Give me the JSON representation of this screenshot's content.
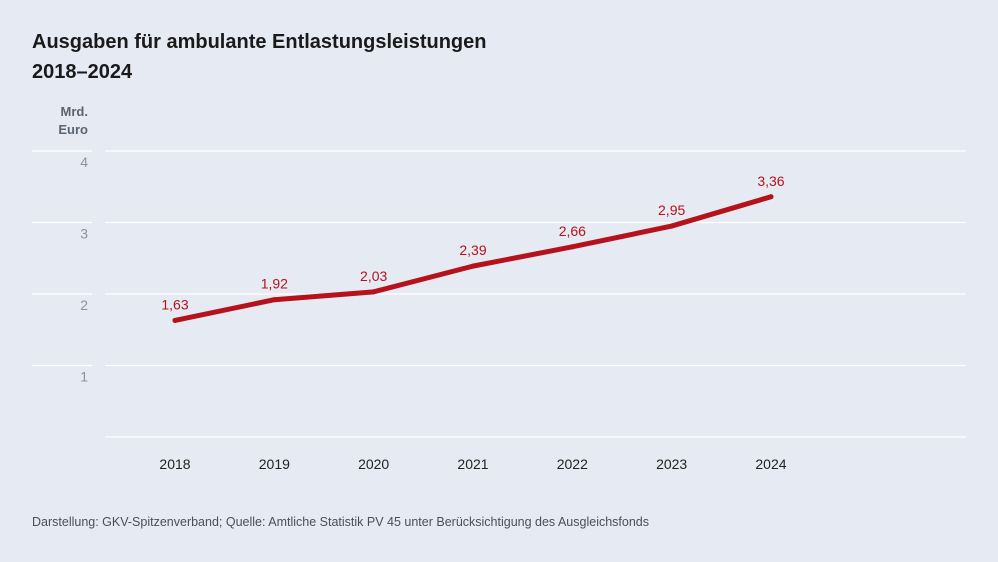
{
  "header": {
    "title_line1": "Ausgaben für ambulante Entlastungsleistungen",
    "title_line2": "2018–2024"
  },
  "axis": {
    "unit_line1": "Mrd.",
    "unit_line2": "Euro"
  },
  "footer": {
    "source": "Darstellung: GKV-Spitzenverband; Quelle: Amtliche Statistik PV 45 unter Berücksichtigung des Ausgleichsfonds"
  },
  "colors": {
    "line": "#b5121b",
    "label": "#b5121b",
    "grid": "#ffffff",
    "tick": "#8a93a0",
    "xtick": "#222222"
  },
  "chart_data": {
    "type": "line",
    "title": "Ausgaben für ambulante Entlastungsleistungen 2018–2024",
    "xlabel": "",
    "ylabel": "Mrd. Euro",
    "ylim": [
      0,
      4
    ],
    "yticks": [
      "1",
      "2",
      "3",
      "4"
    ],
    "grid": true,
    "categories": [
      "2018",
      "2019",
      "2020",
      "2021",
      "2022",
      "2023",
      "2024"
    ],
    "series": [
      {
        "name": "Ausgaben",
        "values": [
          1.63,
          1.92,
          2.03,
          2.39,
          2.66,
          2.95,
          3.36
        ],
        "labels": [
          "1,63",
          "1,92",
          "2,03",
          "2,39",
          "2,66",
          "2,95",
          "3,36"
        ]
      }
    ]
  }
}
